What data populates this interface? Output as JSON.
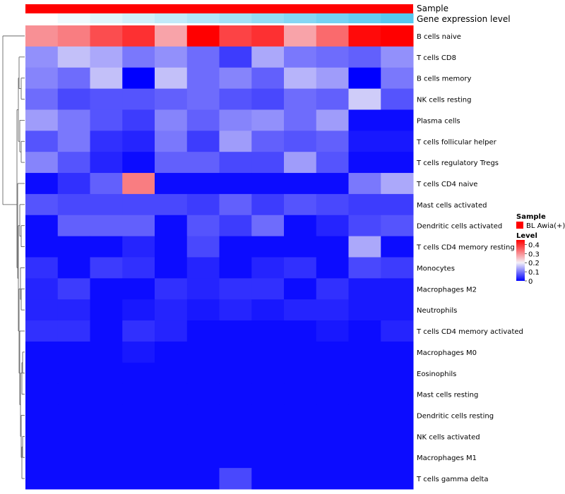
{
  "chart_data": {
    "type": "heatmap",
    "annotation_rows": [
      {
        "label": "Sample",
        "kind": "sample"
      },
      {
        "label": "Gene expression level",
        "kind": "gradient",
        "from": "#ffffff",
        "to": "#56c8f0"
      }
    ],
    "rows": [
      "B cells naive",
      "T cells CD8",
      "B cells memory",
      "NK cells resting",
      "Plasma cells",
      "T cells follicular helper",
      "T cells regulatory  Tregs",
      "T cells CD4 naive",
      "Mast cells activated",
      "Dendritic cells activated",
      "T cells CD4 memory resting",
      "Monocytes",
      "Macrophages M2",
      "Neutrophils",
      "T cells CD4 memory activated",
      "Macrophages M0",
      "Eosinophils",
      "Mast cells resting",
      "Dendritic cells resting",
      "NK cells activated",
      "Macrophages M1",
      "T cells gamma delta"
    ],
    "n_columns": 12,
    "values": [
      [
        0.3,
        0.32,
        0.37,
        0.4,
        0.28,
        0.45,
        0.38,
        0.4,
        0.28,
        0.34,
        0.44,
        0.45
      ],
      [
        0.12,
        0.16,
        0.14,
        0.1,
        0.12,
        0.09,
        0.05,
        0.14,
        0.1,
        0.09,
        0.08,
        0.12
      ],
      [
        0.11,
        0.09,
        0.16,
        0.0,
        0.16,
        0.09,
        0.11,
        0.08,
        0.15,
        0.13,
        0.0,
        0.1
      ],
      [
        0.09,
        0.06,
        0.07,
        0.07,
        0.08,
        0.09,
        0.07,
        0.06,
        0.09,
        0.08,
        0.17,
        0.07
      ],
      [
        0.13,
        0.1,
        0.07,
        0.05,
        0.11,
        0.08,
        0.11,
        0.12,
        0.09,
        0.13,
        0.01,
        0.01
      ],
      [
        0.07,
        0.1,
        0.04,
        0.03,
        0.1,
        0.05,
        0.13,
        0.08,
        0.07,
        0.08,
        0.02,
        0.02
      ],
      [
        0.11,
        0.07,
        0.03,
        0.01,
        0.08,
        0.08,
        0.06,
        0.06,
        0.13,
        0.07,
        0.01,
        0.01
      ],
      [
        0.01,
        0.04,
        0.08,
        0.32,
        0.01,
        0.01,
        0.01,
        0.01,
        0.01,
        0.01,
        0.1,
        0.14
      ],
      [
        0.07,
        0.06,
        0.06,
        0.06,
        0.06,
        0.05,
        0.08,
        0.05,
        0.07,
        0.06,
        0.05,
        0.05
      ],
      [
        0.01,
        0.08,
        0.08,
        0.08,
        0.01,
        0.07,
        0.05,
        0.09,
        0.01,
        0.03,
        0.06,
        0.07
      ],
      [
        0.01,
        0.01,
        0.01,
        0.03,
        0.01,
        0.06,
        0.01,
        0.01,
        0.01,
        0.01,
        0.14,
        0.01
      ],
      [
        0.04,
        0.01,
        0.05,
        0.04,
        0.01,
        0.03,
        0.01,
        0.03,
        0.04,
        0.01,
        0.06,
        0.05
      ],
      [
        0.03,
        0.05,
        0.01,
        0.01,
        0.04,
        0.03,
        0.04,
        0.04,
        0.01,
        0.04,
        0.02,
        0.02
      ],
      [
        0.03,
        0.03,
        0.01,
        0.02,
        0.03,
        0.02,
        0.03,
        0.02,
        0.03,
        0.03,
        0.02,
        0.02
      ],
      [
        0.04,
        0.04,
        0.01,
        0.04,
        0.03,
        0.01,
        0.01,
        0.01,
        0.01,
        0.02,
        0.01,
        0.03
      ],
      [
        0.01,
        0.01,
        0.01,
        0.02,
        0.01,
        0.01,
        0.01,
        0.01,
        0.01,
        0.01,
        0.01,
        0.01
      ],
      [
        0.01,
        0.01,
        0.01,
        0.01,
        0.01,
        0.01,
        0.01,
        0.01,
        0.01,
        0.01,
        0.01,
        0.01
      ],
      [
        0.01,
        0.01,
        0.01,
        0.01,
        0.01,
        0.01,
        0.01,
        0.01,
        0.01,
        0.01,
        0.01,
        0.01
      ],
      [
        0.01,
        0.01,
        0.01,
        0.01,
        0.01,
        0.01,
        0.01,
        0.01,
        0.01,
        0.01,
        0.01,
        0.01
      ],
      [
        0.01,
        0.01,
        0.01,
        0.01,
        0.01,
        0.01,
        0.01,
        0.01,
        0.01,
        0.01,
        0.01,
        0.01
      ],
      [
        0.01,
        0.01,
        0.01,
        0.01,
        0.01,
        0.01,
        0.01,
        0.01,
        0.01,
        0.01,
        0.01,
        0.01
      ],
      [
        0.01,
        0.01,
        0.01,
        0.01,
        0.01,
        0.01,
        0.06,
        0.01,
        0.01,
        0.01,
        0.01,
        0.01
      ]
    ],
    "color_scale": {
      "min": 0,
      "max": 0.45,
      "stops": [
        {
          "value": 0,
          "color": "#0000ff"
        },
        {
          "value": 0.2,
          "color": "#f4f0f8"
        },
        {
          "value": 0.45,
          "color": "#ff0000"
        }
      ]
    },
    "legend": {
      "position": "right",
      "sample_title": "Sample",
      "sample_entry": "BL Awia(+)",
      "sample_color": "#ff0000",
      "level_title": "Level",
      "level_ticks": [
        "0.4",
        "0.3",
        "0.2",
        "0.1",
        "0"
      ],
      "level_tick_values": [
        0.4,
        0.3,
        0.2,
        0.1,
        0
      ]
    },
    "dendrogram": "rows"
  }
}
